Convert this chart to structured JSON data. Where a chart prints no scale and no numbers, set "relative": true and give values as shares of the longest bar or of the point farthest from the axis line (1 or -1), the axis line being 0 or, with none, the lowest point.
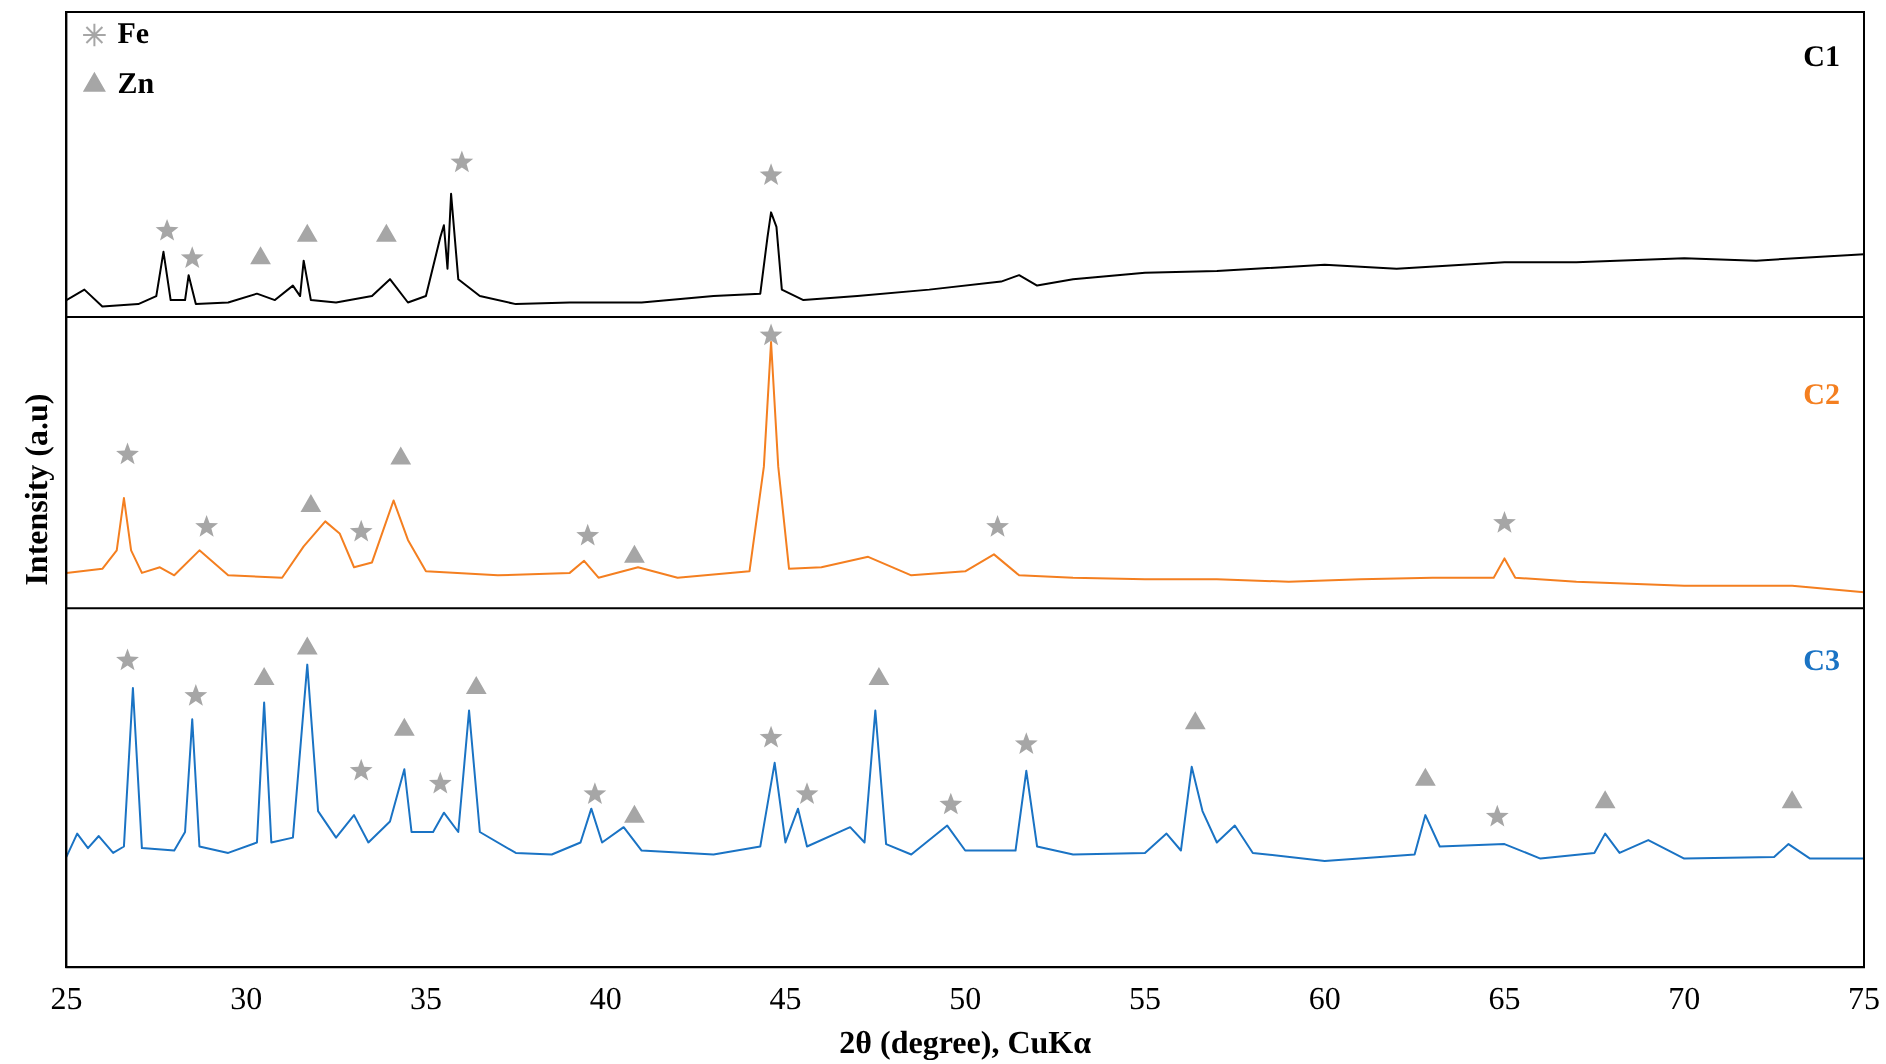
{
  "chart_data": {
    "type": "line",
    "relative": true,
    "xlabel": "2θ (degree), CuKα",
    "ylabel": "Intensity (a.u)",
    "xlim": [
      25,
      75
    ],
    "xticks": [
      25,
      30,
      35,
      40,
      45,
      50,
      55,
      60,
      65,
      70,
      75
    ],
    "tick_labels": "x",
    "grid": false,
    "legend": "top left",
    "line_style": "solid",
    "series": [
      {
        "name": "C1",
        "color": "#000000",
        "marker": "none",
        "x": [
          25,
          25.5,
          26,
          27,
          27.5,
          27.7,
          27.9,
          28.3,
          28.4,
          28.6,
          29.5,
          30.3,
          30.8,
          31.3,
          31.5,
          31.6,
          31.8,
          32.5,
          33.5,
          34,
          34.5,
          35,
          35.4,
          35.5,
          35.6,
          35.7,
          35.9,
          36.5,
          37.5,
          39,
          41,
          43,
          44.3,
          44.5,
          44.6,
          44.75,
          44.9,
          45.5,
          47,
          49,
          51,
          51.5,
          52,
          53,
          55,
          57,
          60,
          62,
          65,
          67,
          70,
          72,
          75
        ],
        "values": [
          0.829,
          0.842,
          0.821,
          0.824,
          0.834,
          0.889,
          0.829,
          0.829,
          0.86,
          0.824,
          0.826,
          0.837,
          0.829,
          0.847,
          0.834,
          0.878,
          0.829,
          0.826,
          0.834,
          0.855,
          0.826,
          0.834,
          0.907,
          0.922,
          0.868,
          0.961,
          0.855,
          0.834,
          0.824,
          0.826,
          0.826,
          0.834,
          0.837,
          0.907,
          0.938,
          0.92,
          0.842,
          0.829,
          0.834,
          0.842,
          0.852,
          0.86,
          0.847,
          0.855,
          0.863,
          0.865,
          0.873,
          0.868,
          0.876,
          0.876,
          0.881,
          0.878,
          0.886
        ]
      },
      {
        "name": "C2",
        "color": "#f47f20",
        "marker": "none",
        "x": [
          25,
          26,
          26.4,
          26.6,
          26.8,
          27.1,
          27.6,
          28,
          28.7,
          29.5,
          31,
          31.6,
          32.2,
          32.6,
          33,
          33.5,
          34.1,
          34.5,
          35,
          37,
          39,
          39.4,
          39.8,
          40.9,
          42,
          44,
          44.4,
          44.6,
          44.8,
          45.1,
          46,
          47.3,
          48.5,
          50,
          50.8,
          51.5,
          53,
          55,
          57,
          59,
          61,
          63,
          64.7,
          65,
          65.3,
          67,
          70,
          73,
          75
        ],
        "values": [
          0.49,
          0.495,
          0.518,
          0.583,
          0.518,
          0.49,
          0.497,
          0.487,
          0.518,
          0.487,
          0.484,
          0.523,
          0.554,
          0.539,
          0.497,
          0.503,
          0.58,
          0.531,
          0.492,
          0.487,
          0.49,
          0.505,
          0.484,
          0.497,
          0.484,
          0.492,
          0.622,
          0.777,
          0.622,
          0.495,
          0.497,
          0.51,
          0.487,
          0.492,
          0.513,
          0.487,
          0.484,
          0.482,
          0.482,
          0.479,
          0.482,
          0.484,
          0.484,
          0.508,
          0.484,
          0.479,
          0.474,
          0.474,
          0.466
        ]
      },
      {
        "name": "C3",
        "color": "#1a73c4",
        "marker": "none",
        "x": [
          25,
          25.3,
          25.6,
          25.9,
          26.3,
          26.6,
          26.85,
          27.1,
          28,
          28.3,
          28.5,
          28.7,
          29.5,
          30.3,
          30.5,
          30.7,
          31.3,
          31.7,
          32,
          32.5,
          33,
          33.4,
          34,
          34.4,
          34.6,
          35.2,
          35.5,
          35.9,
          36.2,
          36.5,
          37.5,
          38.5,
          39.3,
          39.6,
          39.9,
          40.5,
          41,
          43,
          44.3,
          44.7,
          45,
          45.35,
          45.6,
          46.8,
          47.2,
          47.5,
          47.8,
          48.5,
          49.5,
          50,
          51.4,
          51.7,
          52,
          53,
          55,
          55.6,
          56,
          56.3,
          56.6,
          57,
          57.5,
          58,
          60,
          62.5,
          62.8,
          63.2,
          65,
          66,
          67.5,
          67.8,
          68.2,
          69,
          70,
          72.5,
          72.9,
          73.5,
          75
        ],
        "values": [
          0.137,
          0.166,
          0.148,
          0.163,
          0.142,
          0.15,
          0.347,
          0.148,
          0.145,
          0.168,
          0.308,
          0.15,
          0.142,
          0.155,
          0.329,
          0.155,
          0.161,
          0.376,
          0.194,
          0.161,
          0.189,
          0.155,
          0.181,
          0.246,
          0.168,
          0.168,
          0.192,
          0.168,
          0.319,
          0.168,
          0.142,
          0.14,
          0.155,
          0.197,
          0.155,
          0.174,
          0.145,
          0.14,
          0.15,
          0.254,
          0.155,
          0.197,
          0.15,
          0.174,
          0.155,
          0.319,
          0.153,
          0.14,
          0.176,
          0.145,
          0.145,
          0.244,
          0.15,
          0.14,
          0.142,
          0.166,
          0.145,
          0.249,
          0.194,
          0.155,
          0.176,
          0.142,
          0.132,
          0.14,
          0.189,
          0.15,
          0.153,
          0.135,
          0.142,
          0.166,
          0.142,
          0.158,
          0.135,
          0.137,
          0.153,
          0.135,
          0.135
        ]
      },
      {
        "name": "Fe",
        "type": "scatter",
        "color": "#a6a6a6",
        "marker": "star",
        "x": [
          27.8,
          28.5,
          36,
          44.6,
          26.7,
          28.9,
          33.2,
          39.5,
          44.6,
          50.9,
          65,
          26.7,
          28.6,
          33.2,
          35.4,
          39.7,
          44.6,
          45.6,
          49.6,
          51.7,
          64.8
        ],
        "values": [
          0.915,
          0.881,
          1,
          0.984,
          0.637,
          0.547,
          0.541,
          0.536,
          0.785,
          0.547,
          0.552,
          0.381,
          0.337,
          0.244,
          0.228,
          0.215,
          0.285,
          0.215,
          0.202,
          0.277,
          0.187
        ]
      },
      {
        "name": "Zn",
        "type": "scatter",
        "color": "#a6a6a6",
        "marker": "triangle",
        "x": [
          30.4,
          31.7,
          33.9,
          31.8,
          34.3,
          40.8,
          30.5,
          31.7,
          34.4,
          36.4,
          40.8,
          47.6,
          56.4,
          62.8,
          67.8,
          73
        ],
        "values": [
          0.881,
          0.909,
          0.909,
          0.573,
          0.632,
          0.51,
          0.358,
          0.396,
          0.295,
          0.347,
          0.187,
          0.358,
          0.303,
          0.233,
          0.205,
          0.205
        ]
      }
    ],
    "ref_lines": [
      {
        "axis": "y",
        "value": 0.808,
        "color": "#000000"
      },
      {
        "axis": "y",
        "value": 0.446,
        "color": "#000000"
      }
    ]
  }
}
